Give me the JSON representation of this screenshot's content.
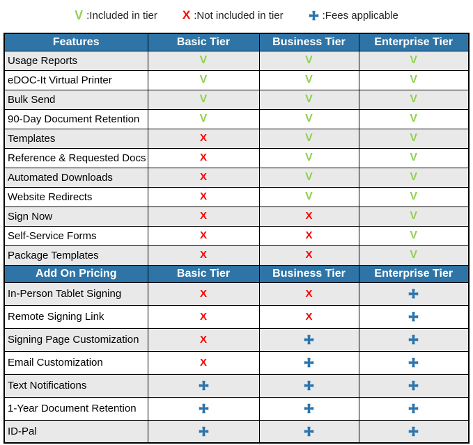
{
  "colors": {
    "header_bg": "#2E74A6",
    "header_text": "#FFFFFF",
    "stripe_bg": "#E9E9E9",
    "white_bg": "#FFFFFF",
    "border": "#000000",
    "check_green": "#92D050",
    "cross_red": "#FF0000",
    "plus_blue": "#2B74AC"
  },
  "icons": {
    "check": "V",
    "cross": "X",
    "plus": "cross-pattee-shape"
  },
  "chart_data": {
    "type": "table",
    "legend": [
      {
        "symbol": "check",
        "label": ":Included in tier"
      },
      {
        "symbol": "cross",
        "label": ":Not included in tier"
      },
      {
        "symbol": "plus",
        "label": ":Fees applicable"
      }
    ],
    "sections": [
      {
        "title": "Features",
        "columns": [
          "Basic Tier",
          "Business Tier",
          "Enterprise Tier"
        ],
        "rows": [
          {
            "feature": "Usage Reports",
            "tiers": [
              "check",
              "check",
              "check"
            ]
          },
          {
            "feature": "eDOC-It Virtual Printer",
            "tiers": [
              "check",
              "check",
              "check"
            ]
          },
          {
            "feature": "Bulk Send",
            "tiers": [
              "check",
              "check",
              "check"
            ]
          },
          {
            "feature": "90-Day Document Retention",
            "tiers": [
              "check",
              "check",
              "check"
            ]
          },
          {
            "feature": "Templates",
            "tiers": [
              "cross",
              "check",
              "check"
            ]
          },
          {
            "feature": "Reference & Requested Docs",
            "tiers": [
              "cross",
              "check",
              "check"
            ]
          },
          {
            "feature": "Automated Downloads",
            "tiers": [
              "cross",
              "check",
              "check"
            ]
          },
          {
            "feature": "Website Redirects",
            "tiers": [
              "cross",
              "check",
              "check"
            ]
          },
          {
            "feature": "Sign Now",
            "tiers": [
              "cross",
              "cross",
              "check"
            ]
          },
          {
            "feature": "Self-Service Forms",
            "tiers": [
              "cross",
              "cross",
              "check"
            ]
          },
          {
            "feature": "Package Templates",
            "tiers": [
              "cross",
              "cross",
              "check"
            ]
          }
        ]
      },
      {
        "title": "Add On Pricing",
        "columns": [
          "Basic Tier",
          "Business Tier",
          "Enterprise Tier"
        ],
        "rows": [
          {
            "feature": "In-Person Tablet Signing",
            "tiers": [
              "cross",
              "cross",
              "plus"
            ]
          },
          {
            "feature": "Remote Signing Link",
            "tiers": [
              "cross",
              "cross",
              "plus"
            ]
          },
          {
            "feature": "Signing Page Customization",
            "tiers": [
              "cross",
              "plus",
              "plus"
            ]
          },
          {
            "feature": "Email Customization",
            "tiers": [
              "cross",
              "plus",
              "plus"
            ]
          },
          {
            "feature": "Text Notifications",
            "tiers": [
              "plus",
              "plus",
              "plus"
            ]
          },
          {
            "feature": "1-Year Document Retention",
            "tiers": [
              "plus",
              "plus",
              "plus"
            ]
          },
          {
            "feature": "ID-Pal",
            "tiers": [
              "plus",
              "plus",
              "plus"
            ]
          }
        ]
      }
    ]
  }
}
